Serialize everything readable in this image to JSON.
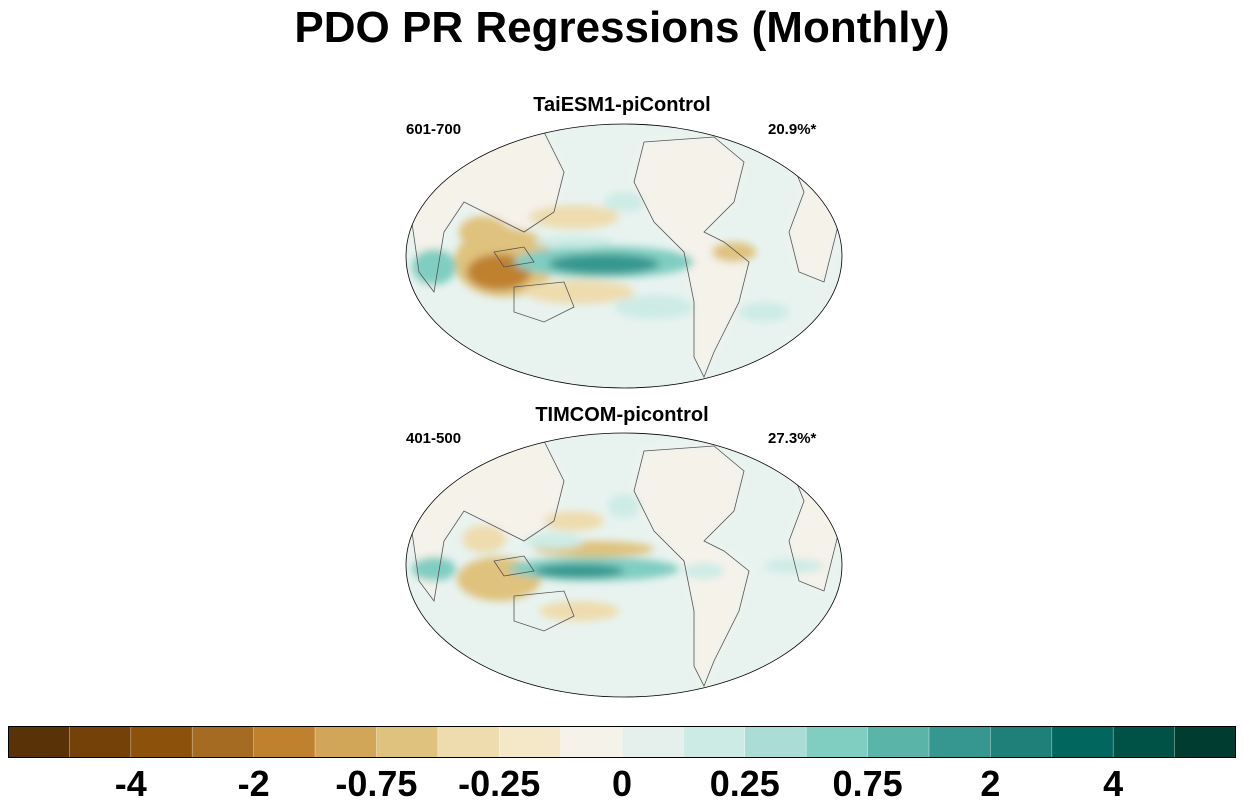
{
  "title": "PDO PR Regressions (Monthly)",
  "panels": [
    {
      "title": "TaiESM1-piControl",
      "period": "601-700",
      "variance": "20.9%*"
    },
    {
      "title": "TIMCOM-picontrol",
      "period": "401-500",
      "variance": "27.3%*"
    }
  ],
  "colorbar": {
    "colors": [
      "#5a3208",
      "#744209",
      "#8c510a",
      "#a66b22",
      "#bf812d",
      "#d2a658",
      "#dfc27d",
      "#eedcae",
      "#f5e8c8",
      "#f5f2ea",
      "#e5f0ec",
      "#cdebe5",
      "#a9ddd5",
      "#80cdc1",
      "#5ab4a8",
      "#35978f",
      "#1f8079",
      "#01665e",
      "#015246",
      "#003c30"
    ],
    "tick_labels": [
      "-4",
      "-2",
      "-0.75",
      "-0.25",
      "0",
      "0.25",
      "0.75",
      "2",
      "4"
    ],
    "tick_boundary_index": [
      2,
      4,
      6,
      8,
      10,
      12,
      14,
      16,
      18
    ]
  },
  "map_colors": {
    "ocean_base": "#e8f3f0",
    "land_base": "#f5f2ea",
    "coast": "#555555",
    "brown_light": "#eedcae",
    "brown_mid": "#dfc27d",
    "brown_dark": "#bf812d",
    "teal_light": "#cdebe5",
    "teal_mid": "#80cdc1",
    "teal_dark": "#35978f"
  }
}
